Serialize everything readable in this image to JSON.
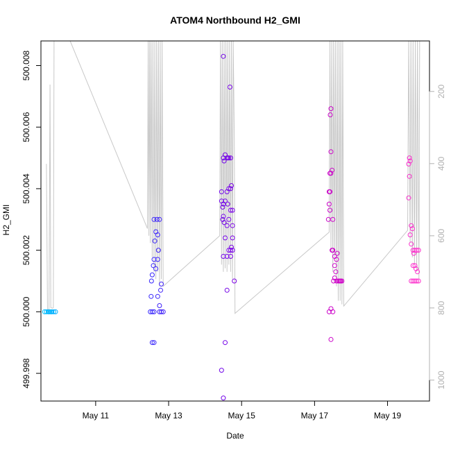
{
  "chart_data": {
    "type": "scatter",
    "title": "ATOM4 Northbound H2_GMI",
    "xlabel": "Date",
    "ylabel": "H2_GMI",
    "x_ticks": [
      "May 11",
      "May 13",
      "May 15",
      "May 17",
      "May 19"
    ],
    "x_tick_days": [
      11,
      13,
      15,
      17,
      19
    ],
    "xlim": [
      9.5,
      20.15
    ],
    "ylim": [
      499.9971,
      500.0088
    ],
    "y_ticks": [
      "499.998",
      "500.000",
      "500.002",
      "500.004",
      "500.006",
      "500.008"
    ],
    "y_tick_values": [
      499.998,
      500.0,
      500.002,
      500.004,
      500.006,
      500.008
    ],
    "y2_ticks": [
      "200",
      "400",
      "600",
      "800",
      "1000"
    ],
    "y2_tick_values": [
      200,
      400,
      600,
      800,
      1000
    ],
    "y2lim": [
      1058,
      60
    ],
    "secondary_series_color": "#c8c8c8",
    "point_gradient": [
      "#00bfff",
      "#2b2bff",
      "#7a00e6",
      "#c800c8",
      "#ff33cc"
    ],
    "grid": false,
    "points": [
      [
        9.6,
        500.0
      ],
      [
        9.65,
        500.0
      ],
      [
        9.7,
        500.0
      ],
      [
        9.75,
        500.0
      ],
      [
        9.8,
        500.0
      ],
      [
        9.85,
        500.0
      ],
      [
        9.9,
        500.0
      ],
      [
        9.72,
        500.0
      ],
      [
        9.78,
        500.0
      ],
      [
        12.5,
        500.0
      ],
      [
        12.55,
        500.0
      ],
      [
        12.6,
        500.0
      ],
      [
        12.75,
        500.0
      ],
      [
        12.8,
        500.0
      ],
      [
        12.85,
        500.0
      ],
      [
        12.55,
        499.999
      ],
      [
        12.6,
        499.999
      ],
      [
        12.52,
        500.0005
      ],
      [
        12.53,
        500.001
      ],
      [
        12.55,
        500.0012
      ],
      [
        12.58,
        500.0015
      ],
      [
        12.6,
        500.0017
      ],
      [
        12.62,
        500.0023
      ],
      [
        12.65,
        500.0026
      ],
      [
        12.68,
        500.003
      ],
      [
        12.7,
        500.0025
      ],
      [
        12.72,
        500.002
      ],
      [
        12.75,
        500.003
      ],
      [
        12.8,
        500.0009
      ],
      [
        12.78,
        500.0007
      ],
      [
        12.7,
        500.0017
      ],
      [
        12.6,
        500.003
      ],
      [
        12.7,
        500.0005
      ],
      [
        12.75,
        500.0002
      ],
      [
        12.65,
        500.0014
      ],
      [
        14.45,
        499.9981
      ],
      [
        14.5,
        499.9972
      ],
      [
        14.55,
        499.999
      ],
      [
        14.6,
        500.0007
      ],
      [
        14.5,
        500.0083
      ],
      [
        14.68,
        500.0073
      ],
      [
        14.55,
        500.0051
      ],
      [
        14.6,
        500.005
      ],
      [
        14.65,
        500.005
      ],
      [
        14.62,
        500.005
      ],
      [
        14.7,
        500.005
      ],
      [
        14.5,
        500.005
      ],
      [
        14.52,
        500.0049
      ],
      [
        14.45,
        500.0039
      ],
      [
        14.6,
        500.0039
      ],
      [
        14.65,
        500.004
      ],
      [
        14.7,
        500.004
      ],
      [
        14.72,
        500.0041
      ],
      [
        14.45,
        500.0036
      ],
      [
        14.5,
        500.0035
      ],
      [
        14.55,
        500.0036
      ],
      [
        14.48,
        500.0034
      ],
      [
        14.62,
        500.0035
      ],
      [
        14.7,
        500.0033
      ],
      [
        14.75,
        500.0033
      ],
      [
        14.5,
        500.0031
      ],
      [
        14.48,
        500.003
      ],
      [
        14.52,
        500.0029
      ],
      [
        14.6,
        500.0028
      ],
      [
        14.65,
        500.003
      ],
      [
        14.75,
        500.0028
      ],
      [
        14.55,
        500.0024
      ],
      [
        14.65,
        500.002
      ],
      [
        14.7,
        500.002
      ],
      [
        14.72,
        500.0021
      ],
      [
        14.75,
        500.0024
      ],
      [
        14.8,
        500.001
      ],
      [
        14.5,
        500.0018
      ],
      [
        14.6,
        500.0018
      ],
      [
        14.7,
        500.0018
      ],
      [
        14.75,
        500.002
      ],
      [
        17.4,
        500.0
      ],
      [
        17.45,
        500.0001
      ],
      [
        17.5,
        500.0
      ],
      [
        17.45,
        499.9991
      ],
      [
        17.45,
        500.0066
      ],
      [
        17.43,
        500.0064
      ],
      [
        17.45,
        500.0052
      ],
      [
        17.42,
        500.0045
      ],
      [
        17.45,
        500.0045
      ],
      [
        17.48,
        500.0046
      ],
      [
        17.4,
        500.0039
      ],
      [
        17.42,
        500.0039
      ],
      [
        17.4,
        500.0035
      ],
      [
        17.42,
        500.0033
      ],
      [
        17.38,
        500.003
      ],
      [
        17.5,
        500.003
      ],
      [
        17.48,
        500.002
      ],
      [
        17.5,
        500.002
      ],
      [
        17.55,
        500.0015
      ],
      [
        17.6,
        500.0017
      ],
      [
        17.58,
        500.0013
      ],
      [
        17.55,
        500.0011
      ],
      [
        17.6,
        500.001
      ],
      [
        17.65,
        500.001
      ],
      [
        17.68,
        500.001
      ],
      [
        17.7,
        500.001
      ],
      [
        17.72,
        500.001
      ],
      [
        17.75,
        500.001
      ],
      [
        17.52,
        500.001
      ],
      [
        17.55,
        500.0018
      ],
      [
        17.62,
        500.0019
      ],
      [
        19.6,
        500.005
      ],
      [
        19.62,
        500.0049
      ],
      [
        19.58,
        500.0048
      ],
      [
        19.6,
        500.0044
      ],
      [
        19.58,
        500.0037
      ],
      [
        19.65,
        500.0028
      ],
      [
        19.68,
        500.0027
      ],
      [
        19.62,
        500.0025
      ],
      [
        19.65,
        500.0022
      ],
      [
        19.7,
        500.002
      ],
      [
        19.75,
        500.002
      ],
      [
        19.8,
        500.002
      ],
      [
        19.85,
        500.002
      ],
      [
        19.72,
        500.0019
      ],
      [
        19.7,
        500.0015
      ],
      [
        19.75,
        500.0015
      ],
      [
        19.78,
        500.0014
      ],
      [
        19.82,
        500.0013
      ],
      [
        19.65,
        500.001
      ],
      [
        19.7,
        500.001
      ],
      [
        19.75,
        500.001
      ],
      [
        19.8,
        500.001
      ],
      [
        19.85,
        500.001
      ]
    ],
    "secondary_line": [
      [
        9.65,
        401
      ],
      [
        9.68,
        812
      ],
      [
        9.7,
        812
      ],
      [
        9.72,
        801
      ],
      [
        9.75,
        181
      ],
      [
        9.77,
        799
      ],
      [
        9.82,
        801
      ],
      [
        9.84,
        799
      ],
      [
        9.86,
        60
      ],
      [
        10.3,
        60
      ],
      [
        12.42,
        580
      ],
      [
        12.44,
        60
      ],
      [
        12.46,
        600
      ],
      [
        12.48,
        60
      ],
      [
        12.5,
        620
      ],
      [
        12.52,
        60
      ],
      [
        12.55,
        660
      ],
      [
        12.57,
        60
      ],
      [
        12.6,
        700
      ],
      [
        12.62,
        60
      ],
      [
        12.65,
        720
      ],
      [
        12.67,
        60
      ],
      [
        12.7,
        700
      ],
      [
        12.72,
        60
      ],
      [
        12.75,
        740
      ],
      [
        12.77,
        60
      ],
      [
        12.8,
        720
      ],
      [
        12.82,
        60
      ],
      [
        12.85,
        740
      ],
      [
        14.4,
        600
      ],
      [
        14.42,
        60
      ],
      [
        14.45,
        680
      ],
      [
        14.47,
        60
      ],
      [
        14.5,
        700
      ],
      [
        14.52,
        60
      ],
      [
        14.55,
        690
      ],
      [
        14.57,
        60
      ],
      [
        14.6,
        700
      ],
      [
        14.62,
        60
      ],
      [
        14.65,
        680
      ],
      [
        14.67,
        60
      ],
      [
        14.7,
        700
      ],
      [
        14.72,
        60
      ],
      [
        14.75,
        720
      ],
      [
        14.77,
        60
      ],
      [
        14.8,
        330
      ],
      [
        14.82,
        815
      ],
      [
        17.4,
        590
      ],
      [
        17.42,
        60
      ],
      [
        17.45,
        640
      ],
      [
        17.47,
        60
      ],
      [
        17.5,
        700
      ],
      [
        17.52,
        60
      ],
      [
        17.55,
        660
      ],
      [
        17.57,
        60
      ],
      [
        17.6,
        740
      ],
      [
        17.62,
        60
      ],
      [
        17.65,
        780
      ],
      [
        17.67,
        60
      ],
      [
        17.7,
        780
      ],
      [
        17.72,
        60
      ],
      [
        17.75,
        790
      ],
      [
        17.77,
        60
      ],
      [
        17.8,
        795
      ],
      [
        19.55,
        585
      ],
      [
        19.58,
        60
      ],
      [
        19.62,
        620
      ],
      [
        19.64,
        60
      ],
      [
        19.68,
        660
      ],
      [
        19.7,
        60
      ],
      [
        19.74,
        680
      ],
      [
        19.76,
        60
      ],
      [
        19.8,
        700
      ],
      [
        19.82,
        60
      ],
      [
        19.86,
        720
      ],
      [
        19.88,
        60
      ]
    ]
  }
}
